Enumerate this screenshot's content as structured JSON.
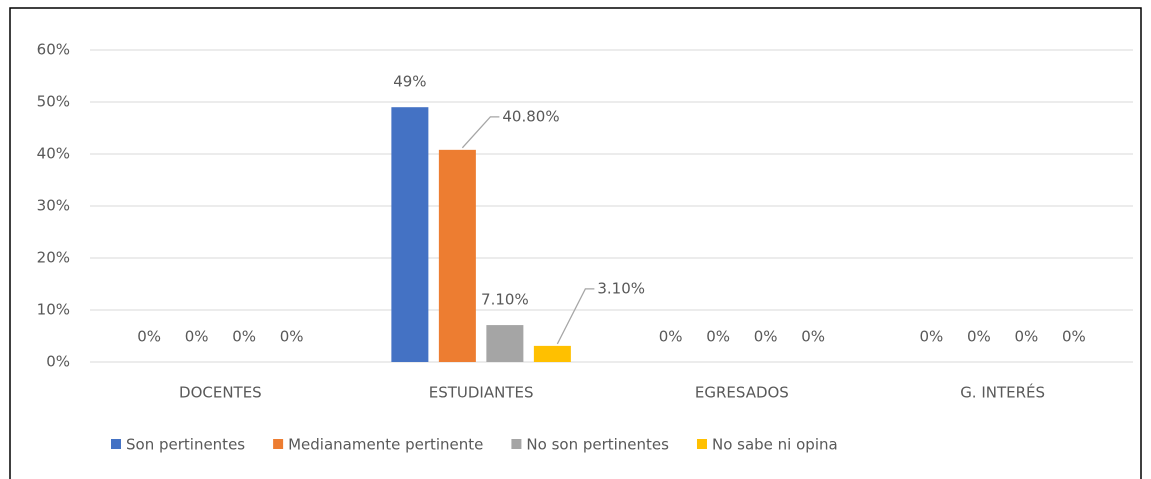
{
  "chart_data": {
    "type": "bar",
    "categories": [
      "DOCENTES",
      "ESTUDIANTES",
      "EGRESADOS",
      "G. INTERÉS"
    ],
    "series": [
      {
        "name": "Son pertinentes",
        "color": "#4472c4",
        "values": [
          0,
          49,
          0,
          0
        ],
        "value_labels": [
          "0%",
          "49%",
          "0%",
          "0%"
        ]
      },
      {
        "name": "Medianamente pertinente",
        "color": "#ed7d31",
        "values": [
          0,
          40.8,
          0,
          0
        ],
        "value_labels": [
          "0%",
          "40.80%",
          "0%",
          "0%"
        ]
      },
      {
        "name": "No son pertinentes",
        "color": "#a5a5a5",
        "values": [
          0,
          7.1,
          0,
          0
        ],
        "value_labels": [
          "0%",
          "7.10%",
          "0%",
          "0%"
        ]
      },
      {
        "name": "No sabe ni opina",
        "color": "#ffc000",
        "values": [
          0,
          3.1,
          0,
          0
        ],
        "value_labels": [
          "0%",
          "3.10%",
          "0%",
          "0%"
        ]
      }
    ],
    "ylim": [
      0,
      60
    ],
    "yticks": [
      {
        "value": 0,
        "label": "0%"
      },
      {
        "value": 10,
        "label": "10%"
      },
      {
        "value": 20,
        "label": "20%"
      },
      {
        "value": 30,
        "label": "30%"
      },
      {
        "value": 40,
        "label": "40%"
      },
      {
        "value": 50,
        "label": "50%"
      },
      {
        "value": 60,
        "label": "60%"
      }
    ],
    "grid": true,
    "legend": "bottom"
  }
}
